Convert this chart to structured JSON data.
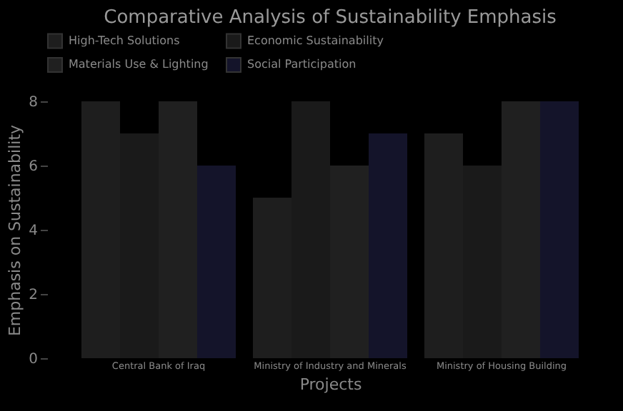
{
  "chart_data": {
    "type": "bar",
    "title": "Comparative Analysis of Sustainability Emphasis",
    "xlabel": "Projects",
    "ylabel": "Emphasis on Sustainability",
    "categories": [
      "Central Bank of Iraq",
      "Ministry of Industry and Minerals",
      "Ministry of Housing Building"
    ],
    "series": [
      {
        "name": "High-Tech Solutions",
        "color": "#1e1e1e",
        "values": [
          8,
          5,
          7
        ]
      },
      {
        "name": "Economic Sustainability",
        "color": "#1a1a1a",
        "values": [
          7,
          8,
          6
        ]
      },
      {
        "name": "Materials Use & Lighting",
        "color": "#202020",
        "values": [
          8,
          6,
          8
        ]
      },
      {
        "name": "Social Participation",
        "color": "#14142a",
        "values": [
          6,
          7,
          8
        ]
      }
    ],
    "ylim": [
      0,
      8
    ],
    "yticks": [
      0,
      2,
      4,
      6,
      8
    ],
    "legend": "top",
    "grid": false
  }
}
